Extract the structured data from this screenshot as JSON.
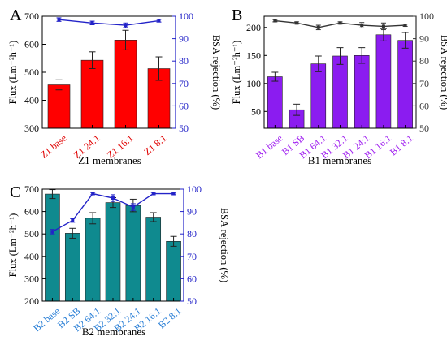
{
  "chart_data": [
    {
      "type": "bar",
      "panel_label": "A",
      "xlabel": "Z1 membranes",
      "ylabel": "Flux (Lm⁻²h⁻¹)",
      "ylabel2": "BSA rejection (%)",
      "categories": [
        "Z1 base",
        "Z1 24:1",
        "Z1 16:1",
        "Z1 8:1"
      ],
      "ylim": [
        300,
        700
      ],
      "yticks": [
        300,
        400,
        500,
        600,
        700
      ],
      "ylim2": [
        50,
        100
      ],
      "yticks2": [
        50,
        60,
        70,
        80,
        90,
        100
      ],
      "bar_color": "#ff0000",
      "line_color": "#2323c8",
      "category_label_color": "#e00000",
      "series": [
        {
          "kind": "bar",
          "axis": "left",
          "values": [
            455,
            543,
            615,
            513
          ],
          "errors": [
            18,
            30,
            35,
            42
          ]
        },
        {
          "kind": "line",
          "axis": "right",
          "values": [
            98.5,
            97.0,
            96.0,
            98.0
          ],
          "errors": [
            0.8,
            0.8,
            1.0,
            0.6
          ]
        }
      ]
    },
    {
      "type": "bar",
      "panel_label": "B",
      "xlabel": "B1 membranes",
      "ylabel": "Flux (Lm⁻²h⁻¹)",
      "ylabel2": "BSA rejection (%)",
      "categories": [
        "B1 base",
        "B1 SB",
        "B1 64:1",
        "B1 32:1",
        "B1 24:1",
        "B1 16:1",
        "B1 8:1"
      ],
      "ylim": [
        20,
        220
      ],
      "yticks": [
        50,
        100,
        150,
        200
      ],
      "ylim2": [
        50,
        100
      ],
      "yticks2": [
        50,
        60,
        70,
        80,
        90,
        100
      ],
      "bar_color": "#8b1cf0",
      "line_color": "#333333",
      "category_label_color": "#a020f0",
      "series": [
        {
          "kind": "bar",
          "axis": "left",
          "values": [
            112,
            53,
            135,
            149,
            150,
            187,
            177
          ],
          "errors": [
            8,
            10,
            14,
            15,
            14,
            11,
            14
          ]
        },
        {
          "kind": "line",
          "axis": "right",
          "values": [
            98.0,
            97.0,
            95.0,
            97.0,
            96.0,
            95.5,
            96.0
          ],
          "errors": [
            0.5,
            0.5,
            1.0,
            0.5,
            1.2,
            1.5,
            0.5
          ]
        }
      ]
    },
    {
      "type": "bar",
      "panel_label": "C",
      "xlabel": "B2 membranes",
      "ylabel": "Flux (Lm⁻²h⁻¹)",
      "ylabel2": "BSA rejection (%)",
      "categories": [
        "B2 base",
        "B2 SB",
        "B2 64:1",
        "B2 32:1",
        "B2 24:1",
        "B2 16:1",
        "B2 8:1"
      ],
      "ylim": [
        200,
        700
      ],
      "yticks": [
        200,
        300,
        400,
        500,
        600,
        700
      ],
      "ylim2": [
        50,
        100
      ],
      "yticks2": [
        50,
        60,
        70,
        80,
        90,
        100
      ],
      "bar_color": "#0f8a8f",
      "line_color": "#2323c8",
      "category_label_color": "#2a7fd6",
      "series": [
        {
          "kind": "bar",
          "axis": "left",
          "values": [
            678,
            503,
            570,
            640,
            627,
            575,
            467
          ],
          "errors": [
            20,
            22,
            25,
            22,
            28,
            20,
            22
          ]
        },
        {
          "kind": "line",
          "axis": "right",
          "values": [
            81.0,
            86.0,
            98.0,
            96.0,
            92.0,
            98.0,
            98.0
          ],
          "errors": [
            1.0,
            0.8,
            0.5,
            1.5,
            1.5,
            0.5,
            0.5
          ]
        }
      ]
    }
  ]
}
